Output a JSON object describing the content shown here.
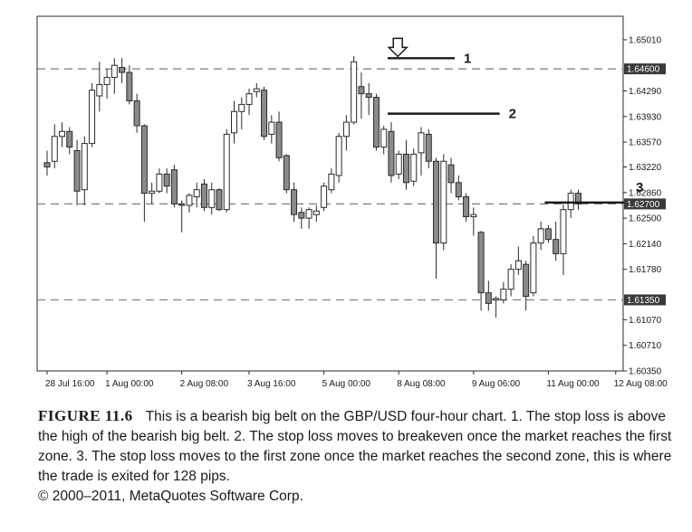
{
  "chart_data": {
    "type": "candlestick",
    "title": "",
    "y_axis": {
      "side": "right",
      "ticks": [
        1.6501,
        1.6429,
        1.6393,
        1.6357,
        1.6322,
        1.6286,
        1.625,
        1.6214,
        1.6178,
        1.6107,
        1.6071,
        1.6035
      ],
      "tick_labels": [
        "1.65010",
        "1.64290",
        "1.63930",
        "1.63570",
        "1.63220",
        "1.62860",
        "1.62500",
        "1.62140",
        "1.61780",
        "1.61070",
        "1.60710",
        "1.60350"
      ],
      "range": [
        1.6035,
        1.6534
      ],
      "highlighted_levels": [
        {
          "value": 1.646,
          "label": "1.64600"
        },
        {
          "value": 1.627,
          "label": "1.62700"
        },
        {
          "value": 1.6135,
          "label": "1.61350"
        }
      ]
    },
    "x_axis": {
      "tick_labels": [
        "28 Jul 16:00",
        "1 Aug 00:00",
        "2 Aug 08:00",
        "3 Aug 16:00",
        "5 Aug 00:00",
        "8 Aug 08:00",
        "9 Aug 06:00",
        "11 Aug 00:00",
        "12 Aug 08:00"
      ],
      "tick_bar_index": [
        0,
        8,
        18,
        27,
        37,
        47,
        57,
        67,
        76
      ]
    },
    "grid": false,
    "annotations": [
      {
        "label": "1",
        "value": 1.6475,
        "from_bar": 46,
        "to_bar": 54
      },
      {
        "label": "2",
        "value": 1.6397,
        "from_bar": 46,
        "to_bar": 60
      },
      {
        "label": "3",
        "value": 1.6272,
        "from_bar": 67,
        "to_bar": 77
      }
    ],
    "arrow": {
      "bar_index": 47,
      "direction": "down"
    },
    "candles": [
      {
        "o": 1.6328,
        "h": 1.6345,
        "l": 1.631,
        "c": 1.6322
      },
      {
        "o": 1.633,
        "h": 1.6382,
        "l": 1.632,
        "c": 1.6365
      },
      {
        "o": 1.6365,
        "h": 1.6385,
        "l": 1.635,
        "c": 1.6372
      },
      {
        "o": 1.6372,
        "h": 1.6378,
        "l": 1.634,
        "c": 1.635
      },
      {
        "o": 1.6345,
        "h": 1.636,
        "l": 1.6268,
        "c": 1.6288
      },
      {
        "o": 1.629,
        "h": 1.6365,
        "l": 1.6268,
        "c": 1.6355
      },
      {
        "o": 1.6355,
        "h": 1.644,
        "l": 1.635,
        "c": 1.643
      },
      {
        "o": 1.6422,
        "h": 1.647,
        "l": 1.64,
        "c": 1.6438
      },
      {
        "o": 1.6438,
        "h": 1.646,
        "l": 1.6418,
        "c": 1.6448
      },
      {
        "o": 1.6448,
        "h": 1.6475,
        "l": 1.6425,
        "c": 1.6465
      },
      {
        "o": 1.6462,
        "h": 1.6475,
        "l": 1.644,
        "c": 1.6455
      },
      {
        "o": 1.6455,
        "h": 1.6465,
        "l": 1.641,
        "c": 1.6415
      },
      {
        "o": 1.6415,
        "h": 1.6425,
        "l": 1.637,
        "c": 1.638
      },
      {
        "o": 1.638,
        "h": 1.6382,
        "l": 1.6245,
        "c": 1.6285
      },
      {
        "o": 1.6285,
        "h": 1.63,
        "l": 1.627,
        "c": 1.6288
      },
      {
        "o": 1.6288,
        "h": 1.632,
        "l": 1.6285,
        "c": 1.6312
      },
      {
        "o": 1.6312,
        "h": 1.632,
        "l": 1.6285,
        "c": 1.6295
      },
      {
        "o": 1.6318,
        "h": 1.6325,
        "l": 1.6265,
        "c": 1.627
      },
      {
        "o": 1.627,
        "h": 1.6275,
        "l": 1.623,
        "c": 1.6268
      },
      {
        "o": 1.6268,
        "h": 1.6285,
        "l": 1.6258,
        "c": 1.6282
      },
      {
        "o": 1.628,
        "h": 1.63,
        "l": 1.6265,
        "c": 1.629
      },
      {
        "o": 1.6298,
        "h": 1.6305,
        "l": 1.626,
        "c": 1.6265
      },
      {
        "o": 1.6265,
        "h": 1.63,
        "l": 1.6255,
        "c": 1.629
      },
      {
        "o": 1.629,
        "h": 1.6292,
        "l": 1.626,
        "c": 1.6262
      },
      {
        "o": 1.6262,
        "h": 1.6375,
        "l": 1.6258,
        "c": 1.6368
      },
      {
        "o": 1.637,
        "h": 1.6415,
        "l": 1.6355,
        "c": 1.64
      },
      {
        "o": 1.64,
        "h": 1.642,
        "l": 1.6375,
        "c": 1.641
      },
      {
        "o": 1.641,
        "h": 1.6432,
        "l": 1.6395,
        "c": 1.6425
      },
      {
        "o": 1.6428,
        "h": 1.644,
        "l": 1.642,
        "c": 1.6432
      },
      {
        "o": 1.643,
        "h": 1.6435,
        "l": 1.636,
        "c": 1.6365
      },
      {
        "o": 1.6368,
        "h": 1.6395,
        "l": 1.6355,
        "c": 1.6385
      },
      {
        "o": 1.6385,
        "h": 1.64,
        "l": 1.633,
        "c": 1.6335
      },
      {
        "o": 1.6338,
        "h": 1.634,
        "l": 1.6285,
        "c": 1.629
      },
      {
        "o": 1.629,
        "h": 1.63,
        "l": 1.6245,
        "c": 1.6255
      },
      {
        "o": 1.6258,
        "h": 1.6265,
        "l": 1.6235,
        "c": 1.625
      },
      {
        "o": 1.625,
        "h": 1.6265,
        "l": 1.6235,
        "c": 1.6262
      },
      {
        "o": 1.6255,
        "h": 1.6268,
        "l": 1.6245,
        "c": 1.626
      },
      {
        "o": 1.6265,
        "h": 1.63,
        "l": 1.626,
        "c": 1.6295
      },
      {
        "o": 1.629,
        "h": 1.632,
        "l": 1.6285,
        "c": 1.6312
      },
      {
        "o": 1.631,
        "h": 1.637,
        "l": 1.63,
        "c": 1.6365
      },
      {
        "o": 1.6365,
        "h": 1.6395,
        "l": 1.6345,
        "c": 1.6385
      },
      {
        "o": 1.6385,
        "h": 1.6478,
        "l": 1.6382,
        "c": 1.647
      },
      {
        "o": 1.6435,
        "h": 1.6455,
        "l": 1.639,
        "c": 1.6425
      },
      {
        "o": 1.6425,
        "h": 1.644,
        "l": 1.6395,
        "c": 1.642
      },
      {
        "o": 1.642,
        "h": 1.6425,
        "l": 1.6345,
        "c": 1.635
      },
      {
        "o": 1.635,
        "h": 1.638,
        "l": 1.634,
        "c": 1.6375
      },
      {
        "o": 1.6372,
        "h": 1.6385,
        "l": 1.63,
        "c": 1.631
      },
      {
        "o": 1.6312,
        "h": 1.6345,
        "l": 1.6305,
        "c": 1.634
      },
      {
        "o": 1.634,
        "h": 1.636,
        "l": 1.629,
        "c": 1.63
      },
      {
        "o": 1.6302,
        "h": 1.6348,
        "l": 1.6295,
        "c": 1.634
      },
      {
        "o": 1.6342,
        "h": 1.6378,
        "l": 1.631,
        "c": 1.637
      },
      {
        "o": 1.6368,
        "h": 1.6375,
        "l": 1.632,
        "c": 1.633
      },
      {
        "o": 1.633,
        "h": 1.6335,
        "l": 1.6165,
        "c": 1.6215
      },
      {
        "o": 1.6215,
        "h": 1.634,
        "l": 1.6205,
        "c": 1.633
      },
      {
        "o": 1.6325,
        "h": 1.6335,
        "l": 1.6285,
        "c": 1.63
      },
      {
        "o": 1.63,
        "h": 1.631,
        "l": 1.6275,
        "c": 1.628
      },
      {
        "o": 1.628,
        "h": 1.6285,
        "l": 1.6245,
        "c": 1.6252
      },
      {
        "o": 1.6252,
        "h": 1.6265,
        "l": 1.6225,
        "c": 1.6255
      },
      {
        "o": 1.623,
        "h": 1.6232,
        "l": 1.612,
        "c": 1.6145
      },
      {
        "o": 1.6145,
        "h": 1.6162,
        "l": 1.612,
        "c": 1.613
      },
      {
        "o": 1.6135,
        "h": 1.614,
        "l": 1.611,
        "c": 1.6137
      },
      {
        "o": 1.6135,
        "h": 1.616,
        "l": 1.613,
        "c": 1.615
      },
      {
        "o": 1.615,
        "h": 1.6185,
        "l": 1.614,
        "c": 1.6178
      },
      {
        "o": 1.6178,
        "h": 1.621,
        "l": 1.617,
        "c": 1.619
      },
      {
        "o": 1.6185,
        "h": 1.619,
        "l": 1.612,
        "c": 1.614
      },
      {
        "o": 1.6145,
        "h": 1.6225,
        "l": 1.614,
        "c": 1.6215
      },
      {
        "o": 1.6215,
        "h": 1.6245,
        "l": 1.6205,
        "c": 1.6235
      },
      {
        "o": 1.6235,
        "h": 1.624,
        "l": 1.6215,
        "c": 1.622
      },
      {
        "o": 1.622,
        "h": 1.6245,
        "l": 1.619,
        "c": 1.62
      },
      {
        "o": 1.62,
        "h": 1.627,
        "l": 1.617,
        "c": 1.6262
      },
      {
        "o": 1.6262,
        "h": 1.629,
        "l": 1.625,
        "c": 1.6285
      },
      {
        "o": 1.6285,
        "h": 1.629,
        "l": 1.6262,
        "c": 1.627
      }
    ]
  },
  "caption": {
    "figure_label": "FIGURE 11.6",
    "text": "This is a bearish big belt on the GBP/USD four-hour chart. 1. The stop loss is above the high of the bearish big belt. 2. The stop loss moves to breakeven once the market reaches the first zone. 3. The stop loss moves to the first zone once the market reaches the second zone, this is where the trade is exited for 128 pips.",
    "copyright": "© 2000–2011, MetaQuotes Software Corp."
  },
  "colors": {
    "bearish_fill": "#8a8a8a",
    "bullish_fill": "#ffffff",
    "candle_stroke": "#2a2a2a",
    "level_line": "#7a7a7a",
    "highlight_tag": "#3a3a3a"
  }
}
